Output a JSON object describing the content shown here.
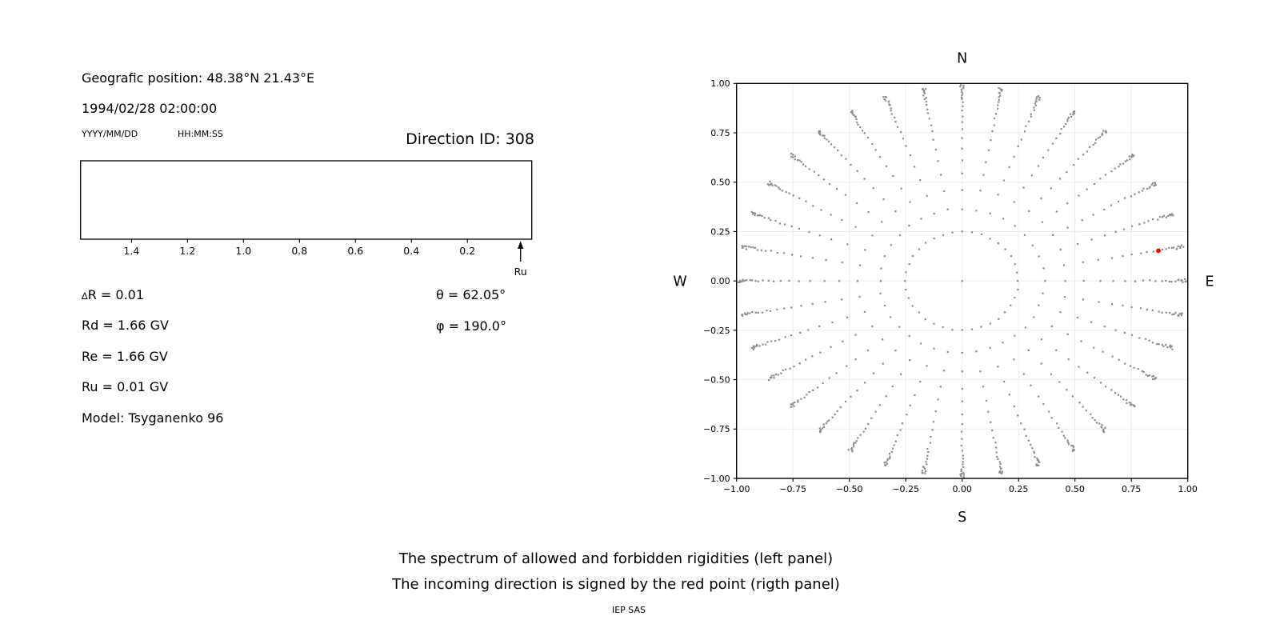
{
  "header": {
    "geo_position": "Geografic position: 48.38°N 21.43°E",
    "datetime": "1994/02/28 02:00:00",
    "date_format": "YYYY/MM/DD",
    "time_format": "HH:MM:SS",
    "direction_id": "Direction ID: 308"
  },
  "parameters": {
    "rows": [
      {
        "sym": "∆",
        "rest": "R = 0.01"
      },
      {
        "sym": "",
        "rest": "Rd = 1.66 GV"
      },
      {
        "sym": "",
        "rest": "Re = 1.66 GV"
      },
      {
        "sym": "",
        "rest": "Ru = 0.01 GV"
      },
      {
        "sym": "",
        "rest": "Model: Tsyganenko 96"
      }
    ],
    "theta": "θ = 62.05°",
    "phi": "φ = 190.0°"
  },
  "caption": {
    "line1": "The spectrum of allowed and forbidden rigidities (left panel)",
    "line2": "The incoming direction is signed by the red point (rigth panel)",
    "credit": "IEP SAS"
  },
  "chart_data": [
    {
      "type": "scatter",
      "panel": "rigidity-spectrum",
      "description": "Empty horizontal axis box: spectrum of allowed and forbidden rigidities in GV; axis decreases left-to-right; arrow at right edge marks Ru",
      "x_ticks": [
        {
          "v": 1.4,
          "label": "1.4"
        },
        {
          "v": 1.2,
          "label": "1.2"
        },
        {
          "v": 1.0,
          "label": "1.0"
        },
        {
          "v": 0.8,
          "label": "0.8"
        },
        {
          "v": 0.6,
          "label": "0.6"
        },
        {
          "v": 0.4,
          "label": "0.4"
        },
        {
          "v": 0.2,
          "label": "0.2"
        }
      ],
      "x_range": [
        1.582,
        -0.03
      ],
      "arrow_label": "Ru",
      "arrow_value": 0.01,
      "points": []
    },
    {
      "type": "scatter",
      "panel": "incoming-direction",
      "description": "36 straight radial rays of gray dots every 10 degrees, from inner ring r=0.25 outward to r≈0.99 with dot spacing shrinking geometrically toward the tips; one dot at the origin; red point marks the incoming direction",
      "compass": {
        "n": "N",
        "s": "S",
        "e": "E",
        "w": "W"
      },
      "x_range": [
        -1,
        1
      ],
      "y_range": [
        -1,
        1
      ],
      "x_ticks": [
        {
          "v": -1,
          "label": "−1.00"
        },
        {
          "v": -0.75,
          "label": "−0.75"
        },
        {
          "v": -0.5,
          "label": "−0.50"
        },
        {
          "v": -0.25,
          "label": "−0.25"
        },
        {
          "v": 0,
          "label": "0.00"
        },
        {
          "v": 0.25,
          "label": "0.25"
        },
        {
          "v": 0.5,
          "label": "0.50"
        },
        {
          "v": 0.75,
          "label": "0.75"
        },
        {
          "v": 1,
          "label": "1.00"
        }
      ],
      "y_ticks": [
        {
          "v": 1,
          "label": "1.00"
        },
        {
          "v": 0.75,
          "label": "0.75"
        },
        {
          "v": 0.5,
          "label": "0.50"
        },
        {
          "v": 0.25,
          "label": "0.25"
        },
        {
          "v": 0,
          "label": "0.00"
        },
        {
          "v": -0.25,
          "label": "−0.25"
        },
        {
          "v": -0.5,
          "label": "−0.50"
        },
        {
          "v": -0.75,
          "label": "−0.75"
        },
        {
          "v": -1,
          "label": "−1.00"
        }
      ],
      "rays": {
        "count": 36,
        "angle_step_deg": 10,
        "r_start": 0.25,
        "r_end": 1.01,
        "decay": 0.85,
        "points_per_ray": 24,
        "center_dot": true
      },
      "dot_color": "#8c8c8c",
      "grid_color": "#ebebeb",
      "red_point": {
        "x": 0.87,
        "y": 0.153,
        "color": "#ff0000"
      }
    }
  ]
}
